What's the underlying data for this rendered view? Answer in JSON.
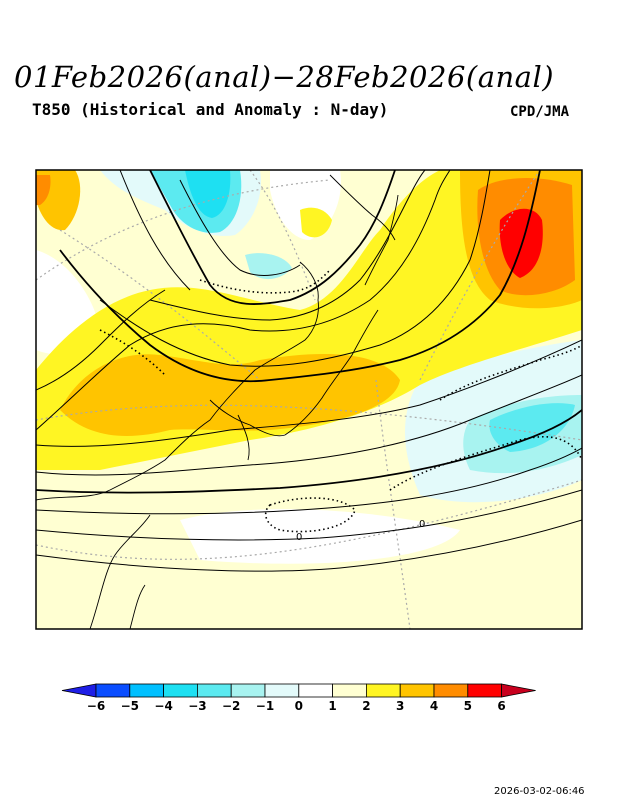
{
  "header": {
    "title": "01Feb2026(anal)−28Feb2026(anal)",
    "subtitle": "T850 (Historical and Anomaly : N-day)",
    "credit": "CPD/JMA"
  },
  "timestamp": "2026-03-02-06:46",
  "colorbar": {
    "ticks": [
      "−6",
      "−5",
      "−4",
      "−3",
      "−2",
      "−1",
      "0",
      "1",
      "2",
      "3",
      "4",
      "5",
      "6"
    ],
    "colors": [
      "#0a4dff",
      "#00c0ff",
      "#1ee0f2",
      "#5ceaf0",
      "#a8f3f0",
      "#e3fafa",
      "#ffffff",
      "#ffffd2",
      "#fff523",
      "#ffc400",
      "#ff8c00",
      "#ff0000"
    ],
    "low_arrow_color": "#1e1ee6",
    "high_arrow_color": "#c8001e"
  },
  "map_labels": {
    "zero_label": "0"
  }
}
